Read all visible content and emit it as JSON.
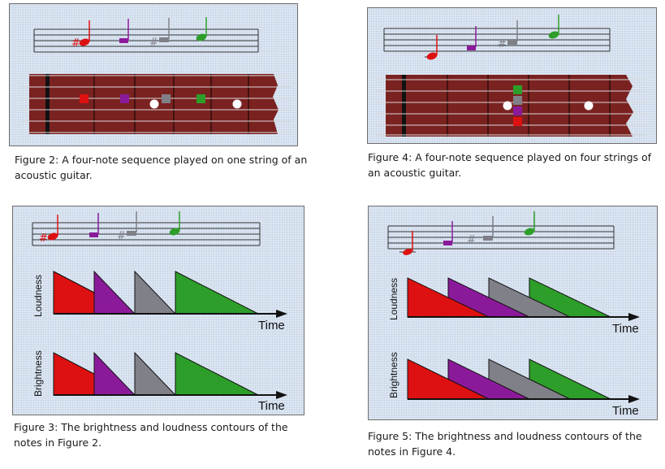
{
  "colors": {
    "note1": "#dd1111",
    "note2": "#8b1a9a",
    "note3": "#808088",
    "note4": "#2e9e2a",
    "fretboard": "#7a2220",
    "panel": "#dde7f3"
  },
  "figures": {
    "fig2": {
      "caption": "Figure 2: A four-note sequence played on one string of an acoustic guitar."
    },
    "fig3": {
      "caption": "Figure 3: The brightness and loudness contours of the notes in Figure 2.",
      "loudness_label": "Loudness",
      "brightness_label": "Brightness",
      "time_label_top": "Time",
      "time_label_bottom": "Time"
    },
    "fig4": {
      "caption": "Figure 4: A four-note sequence played on four strings of an acoustic guitar."
    },
    "fig5": {
      "caption": "Figure 5: The brightness and loudness contours of the notes in Figure 4.",
      "loudness_label": "Loudness",
      "brightness_label": "Brightness",
      "time_label_top": "Time",
      "time_label_bottom": "Time"
    }
  }
}
